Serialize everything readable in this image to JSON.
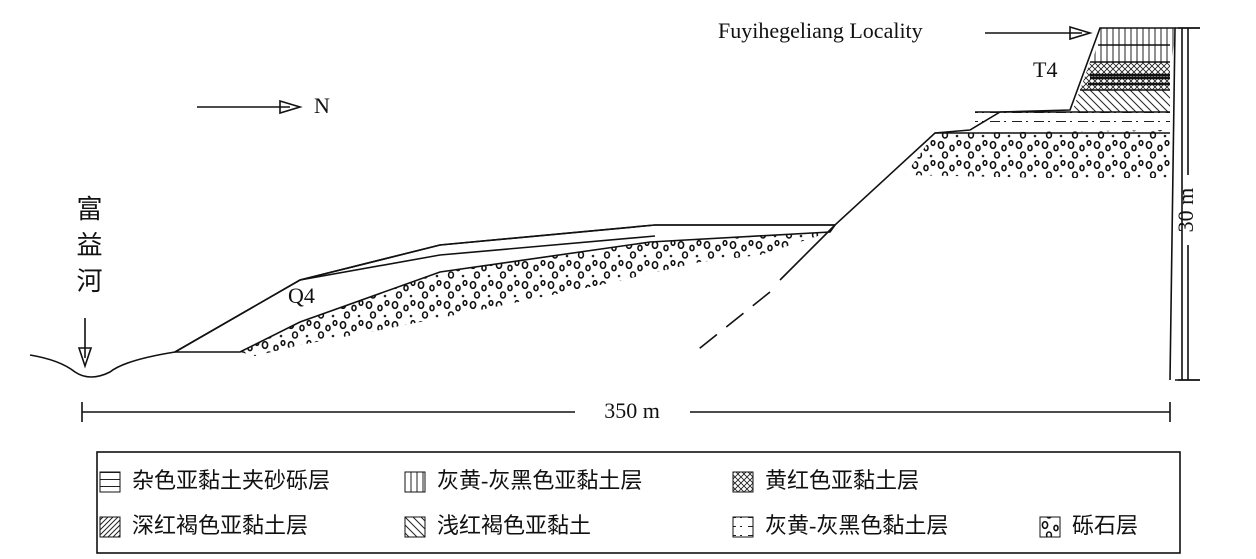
{
  "labels": {
    "locality": "Fuyihegeliang Locality",
    "terrace": "T4",
    "north": "N",
    "river": "富益河",
    "q4": "Q4"
  },
  "scale": {
    "height": "30 m",
    "width": "350 m"
  },
  "legend": [
    "杂色亚黏土夹砂砾层",
    "灰黄-灰黑色亚黏土层",
    "黄红色亚黏土层",
    "深红褐色亚黏土层",
    "浅红褐色亚黏土",
    "灰黄-灰黑色黏土层",
    "砾石层"
  ]
}
